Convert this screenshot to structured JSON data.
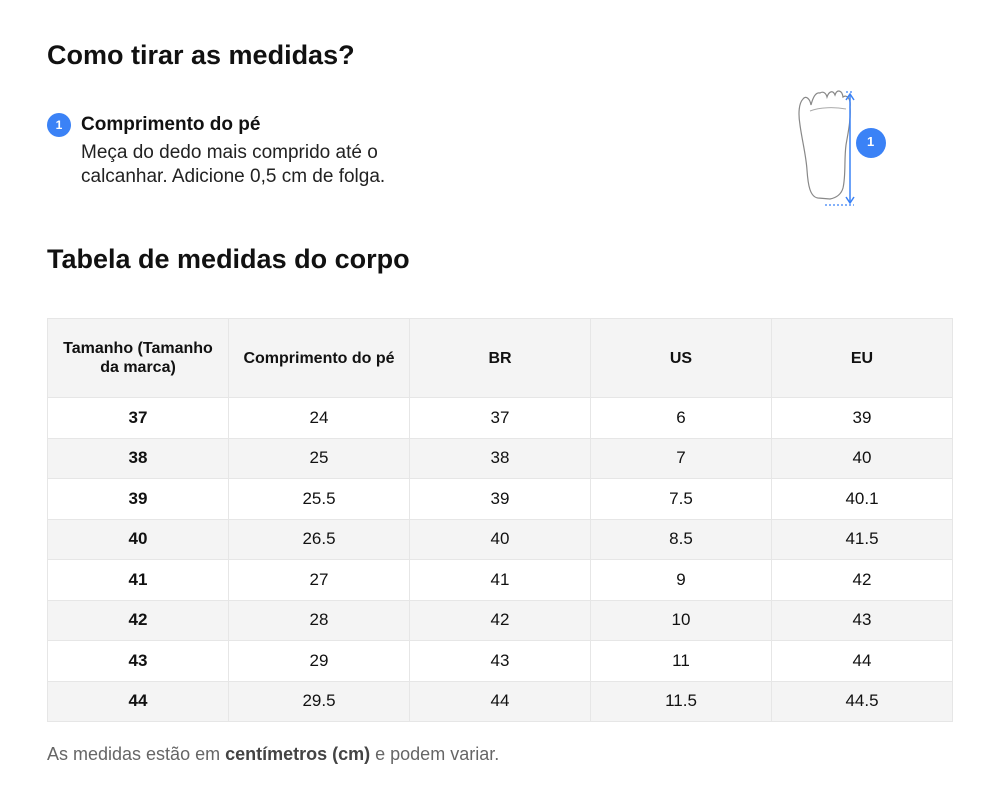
{
  "howto": {
    "title": "Como tirar as medidas?",
    "steps": [
      {
        "number": "1",
        "title": "Comprimento do pé",
        "description": "Meça do dedo mais comprido até o calcanhar. Adicione 0,5 cm de folga."
      }
    ],
    "illustration_badge": "1"
  },
  "table": {
    "title": "Tabela de medidas do corpo",
    "headers": [
      "Tamanho (Tamanho da marca)",
      "Comprimento do pé",
      "BR",
      "US",
      "EU"
    ],
    "rows": [
      [
        "37",
        "24",
        "37",
        "6",
        "39"
      ],
      [
        "38",
        "25",
        "38",
        "7",
        "40"
      ],
      [
        "39",
        "25.5",
        "39",
        "7.5",
        "40.1"
      ],
      [
        "40",
        "26.5",
        "40",
        "8.5",
        "41.5"
      ],
      [
        "41",
        "27",
        "41",
        "9",
        "42"
      ],
      [
        "42",
        "28",
        "42",
        "10",
        "43"
      ],
      [
        "43",
        "29",
        "43",
        "11",
        "44"
      ],
      [
        "44",
        "29.5",
        "44",
        "11.5",
        "44.5"
      ]
    ]
  },
  "note": {
    "prefix": "As medidas estão em ",
    "bold": "centímetros (cm)",
    "suffix": " e podem variar."
  },
  "colors": {
    "accent": "#3b82f6"
  }
}
